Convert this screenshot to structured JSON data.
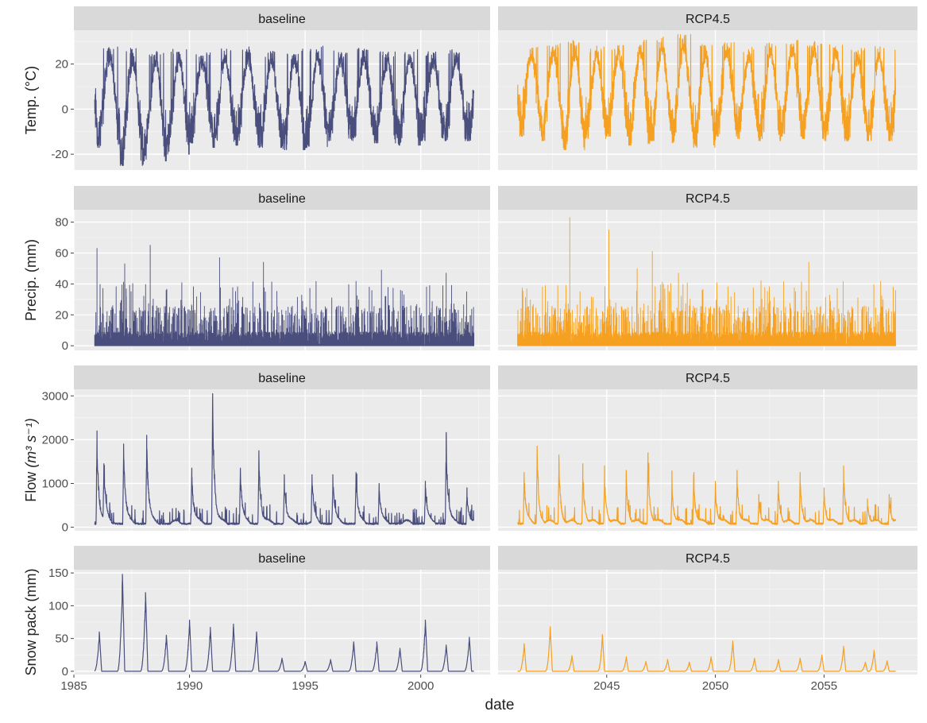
{
  "chart_data": {
    "type": "line",
    "xlabel": "date",
    "colors": {
      "baseline": "#4a4e7d",
      "RCP4.5": "#f5a020"
    },
    "columns": [
      {
        "strip": "baseline",
        "xlim": [
          1985,
          2003.0
        ],
        "xticks": [
          1985,
          1990,
          1995,
          2000
        ],
        "data_range": [
          1985.9,
          2002.3
        ]
      },
      {
        "strip": "RCP4.5",
        "xlim": [
          2040.0,
          2059.3
        ],
        "xticks": [
          2045,
          2050,
          2055
        ],
        "data_range": [
          2040.9,
          2058.3
        ]
      }
    ],
    "rows": [
      {
        "ylabel": "Temp. (°C)",
        "ylim": [
          -27,
          35
        ],
        "yticks": [
          -20,
          0,
          20
        ]
      },
      {
        "ylabel": "Precip. (mm)",
        "ylim": [
          -3,
          88
        ],
        "yticks": [
          0,
          20,
          40,
          60,
          80
        ]
      },
      {
        "ylabel": "Flow",
        "ylabel_units": "(m³ s⁻¹)",
        "ylim": [
          -80,
          3150
        ],
        "yticks": [
          0,
          1000,
          2000,
          3000
        ]
      },
      {
        "ylabel": "Snow pack (mm)",
        "ylim": [
          -5,
          155
        ],
        "yticks": [
          0,
          50,
          100,
          150
        ]
      }
    ],
    "series": [
      {
        "name": "baseline",
        "temperature": {
          "summer_peaks": [
            27,
            28,
            27,
            26,
            27,
            26,
            27,
            28,
            26,
            27,
            28,
            26,
            27,
            26,
            27,
            26,
            27
          ],
          "winter_lows": [
            -8,
            -17,
            -25,
            -23,
            -20,
            -15,
            -17,
            -16,
            -17,
            -18,
            -17,
            -14,
            -14,
            -15,
            -16,
            -14
          ]
        },
        "precip_peaks": [
          {
            "x": 1986.0,
            "y": 63
          },
          {
            "x": 1987.2,
            "y": 53
          },
          {
            "x": 1988.3,
            "y": 65
          },
          {
            "x": 1991.3,
            "y": 57
          },
          {
            "x": 1993.2,
            "y": 54
          },
          {
            "x": 1998.3,
            "y": 49
          },
          {
            "x": 2001.1,
            "y": 47
          }
        ],
        "flow_peaks": [
          {
            "x": 1986.0,
            "y": 2200
          },
          {
            "x": 1986.3,
            "y": 1450
          },
          {
            "x": 1987.15,
            "y": 1900
          },
          {
            "x": 1988.15,
            "y": 2100
          },
          {
            "x": 1990.1,
            "y": 1350
          },
          {
            "x": 1991.0,
            "y": 3050
          },
          {
            "x": 1992.2,
            "y": 1350
          },
          {
            "x": 1993.0,
            "y": 1750
          },
          {
            "x": 1994.1,
            "y": 1200
          },
          {
            "x": 1995.3,
            "y": 1200
          },
          {
            "x": 1996.2,
            "y": 1200
          },
          {
            "x": 1997.2,
            "y": 1250
          },
          {
            "x": 1998.2,
            "y": 1000
          },
          {
            "x": 2000.2,
            "y": 1050
          },
          {
            "x": 2001.1,
            "y": 2150
          },
          {
            "x": 2002.0,
            "y": 900
          }
        ],
        "snow_peaks": [
          {
            "x": 1986.1,
            "y": 60
          },
          {
            "x": 1987.1,
            "y": 148
          },
          {
            "x": 1988.1,
            "y": 120
          },
          {
            "x": 1989.0,
            "y": 55
          },
          {
            "x": 1990.0,
            "y": 78
          },
          {
            "x": 1990.9,
            "y": 67
          },
          {
            "x": 1991.9,
            "y": 72
          },
          {
            "x": 1992.9,
            "y": 60
          },
          {
            "x": 1994.0,
            "y": 20
          },
          {
            "x": 1995.0,
            "y": 15
          },
          {
            "x": 1996.1,
            "y": 18
          },
          {
            "x": 1997.1,
            "y": 45
          },
          {
            "x": 1998.1,
            "y": 45
          },
          {
            "x": 1999.1,
            "y": 35
          },
          {
            "x": 2000.2,
            "y": 78
          },
          {
            "x": 2001.1,
            "y": 40
          },
          {
            "x": 2002.1,
            "y": 52
          }
        ]
      },
      {
        "name": "RCP4.5",
        "temperature": {
          "summer_peaks": [
            28,
            29,
            30,
            31,
            28,
            29,
            31,
            32,
            34,
            29,
            30,
            28,
            30,
            31,
            30,
            29,
            28
          ],
          "winter_lows": [
            -5,
            -12,
            -14,
            -18,
            -13,
            -12,
            -16,
            -14,
            -15,
            -17,
            -12,
            -13,
            -14,
            -12,
            -13,
            -14
          ]
        },
        "precip_peaks": [
          {
            "x": 2043.3,
            "y": 83
          },
          {
            "x": 2045.1,
            "y": 75
          },
          {
            "x": 2047.1,
            "y": 61
          },
          {
            "x": 2046.4,
            "y": 50
          },
          {
            "x": 2054.3,
            "y": 54
          },
          {
            "x": 2048.3,
            "y": 47
          },
          {
            "x": 2052.1,
            "y": 42
          }
        ],
        "flow_peaks": [
          {
            "x": 2041.2,
            "y": 1250
          },
          {
            "x": 2041.8,
            "y": 1850
          },
          {
            "x": 2042.8,
            "y": 1650
          },
          {
            "x": 2043.9,
            "y": 1450
          },
          {
            "x": 2044.9,
            "y": 1400
          },
          {
            "x": 2045.9,
            "y": 1300
          },
          {
            "x": 2046.9,
            "y": 1700
          },
          {
            "x": 2048.0,
            "y": 1100
          },
          {
            "x": 2049.0,
            "y": 1200
          },
          {
            "x": 2050.0,
            "y": 1050
          },
          {
            "x": 2051.0,
            "y": 1300
          },
          {
            "x": 2052.0,
            "y": 750
          },
          {
            "x": 2052.9,
            "y": 1050
          },
          {
            "x": 2053.9,
            "y": 1250
          },
          {
            "x": 2055.0,
            "y": 900
          },
          {
            "x": 2055.9,
            "y": 1400
          },
          {
            "x": 2057.0,
            "y": 650
          },
          {
            "x": 2058.0,
            "y": 750
          }
        ],
        "snow_peaks": [
          {
            "x": 2041.2,
            "y": 42
          },
          {
            "x": 2042.4,
            "y": 68
          },
          {
            "x": 2043.4,
            "y": 24
          },
          {
            "x": 2044.8,
            "y": 56
          },
          {
            "x": 2045.9,
            "y": 22
          },
          {
            "x": 2046.8,
            "y": 15
          },
          {
            "x": 2047.8,
            "y": 18
          },
          {
            "x": 2048.8,
            "y": 14
          },
          {
            "x": 2049.8,
            "y": 22
          },
          {
            "x": 2050.8,
            "y": 46
          },
          {
            "x": 2051.8,
            "y": 20
          },
          {
            "x": 2052.9,
            "y": 18
          },
          {
            "x": 2053.9,
            "y": 20
          },
          {
            "x": 2054.9,
            "y": 25
          },
          {
            "x": 2055.9,
            "y": 38
          },
          {
            "x": 2056.9,
            "y": 14
          },
          {
            "x": 2057.3,
            "y": 32
          },
          {
            "x": 2057.9,
            "y": 16
          }
        ]
      }
    ]
  }
}
